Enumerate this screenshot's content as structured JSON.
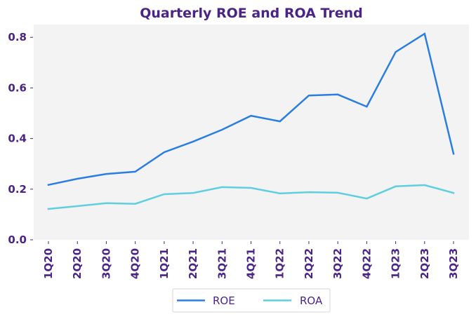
{
  "colors": {
    "text": "#4a2486",
    "plot_bg": "#f3f3f3",
    "roe": "#2a7de1",
    "roa": "#5fcfe0",
    "legend_border": "#d6d6d6"
  },
  "chart_data": {
    "type": "line",
    "title": "Quarterly ROE and ROA Trend",
    "xlabel": "",
    "ylabel": "",
    "categories": [
      "1Q20",
      "2Q20",
      "3Q20",
      "4Q20",
      "1Q21",
      "2Q21",
      "3Q21",
      "4Q21",
      "1Q22",
      "2Q22",
      "3Q22",
      "4Q22",
      "1Q23",
      "2Q23",
      "3Q23"
    ],
    "series": [
      {
        "name": "ROE",
        "color": "#2a7de1",
        "values": [
          0.217,
          0.241,
          0.26,
          0.269,
          0.346,
          0.388,
          0.435,
          0.49,
          0.468,
          0.57,
          0.574,
          0.526,
          0.742,
          0.814,
          0.34
        ]
      },
      {
        "name": "ROA",
        "color": "#5fcfe0",
        "values": [
          0.122,
          0.133,
          0.145,
          0.142,
          0.18,
          0.185,
          0.208,
          0.205,
          0.183,
          0.188,
          0.186,
          0.163,
          0.211,
          0.216,
          0.185
        ]
      }
    ],
    "ylim": [
      0.0,
      0.85
    ],
    "yticks": [
      0.0,
      0.2,
      0.4,
      0.6,
      0.8
    ],
    "ytick_labels": [
      "0.0",
      "0.2",
      "0.4",
      "0.6",
      "0.8"
    ],
    "grid": false,
    "legend": {
      "placement": "bottom-center",
      "entries": [
        "ROE",
        "ROA"
      ]
    }
  }
}
